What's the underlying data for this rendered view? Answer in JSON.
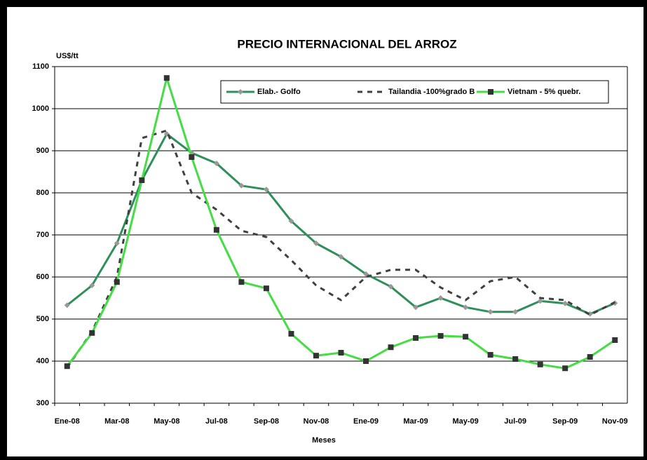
{
  "chart_data": {
    "type": "line",
    "title": "PRECIO INTERNACIONAL DEL ARROZ",
    "y_label": "US$/tt",
    "x_label": "Meses",
    "categories": [
      "Ene-08",
      null,
      "Mar-08",
      null,
      "May-08",
      null,
      "Jul-08",
      null,
      "Sep-08",
      null,
      "Nov-08",
      null,
      "Ene-09",
      null,
      "Mar-09",
      null,
      "May-09",
      null,
      "Jul-09",
      null,
      "Sep-09",
      null,
      "Nov-09"
    ],
    "series": [
      {
        "name": "Elab.- Golfo",
        "color": "#2f8f5a",
        "marker": "diamond",
        "marker_color": "#999999",
        "dash": false,
        "values": [
          533,
          580,
          680,
          830,
          940,
          895,
          870,
          817,
          808,
          733,
          680,
          648,
          607,
          577,
          528,
          550,
          528,
          517,
          517,
          543,
          537,
          512,
          538
        ]
      },
      {
        "name": "Tailandia -100%grado B",
        "color": "#404040",
        "marker": null,
        "marker_color": null,
        "dash": true,
        "values": [
          385,
          470,
          600,
          930,
          948,
          800,
          760,
          710,
          695,
          640,
          580,
          545,
          600,
          617,
          617,
          575,
          545,
          590,
          600,
          550,
          545,
          510,
          540
        ]
      },
      {
        "name": "Vietnam - 5% quebr.",
        "color": "#44dd44",
        "marker": "square",
        "marker_color": "#333333",
        "dash": false,
        "values": [
          388,
          467,
          588,
          830,
          1073,
          885,
          712,
          588,
          573,
          465,
          413,
          420,
          400,
          433,
          455,
          460,
          458,
          415,
          405,
          392,
          383,
          410,
          450
        ]
      }
    ],
    "ylim": [
      300,
      1100
    ],
    "yticks": [
      300,
      400,
      500,
      600,
      700,
      800,
      900,
      1000,
      1100
    ],
    "grid": true,
    "legend": "upper right"
  }
}
